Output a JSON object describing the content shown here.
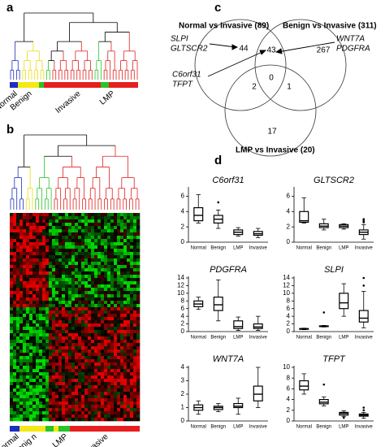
{
  "panels": {
    "a": {
      "label": "a",
      "groups": [
        "Normal",
        "Benign",
        "Invasive",
        "LMP"
      ]
    },
    "b": {
      "label": "b",
      "groups": [
        "Normal",
        "Benig n",
        "LMP",
        "Invasive"
      ]
    },
    "c": {
      "label": "c",
      "sets": [
        "Normal vs Invasive (89)",
        "Benign vs Invasive (311)",
        "LMP vs Invasive (20)"
      ],
      "regions": {
        "normal_only": "44",
        "normal_benign": "43",
        "benign_only": "267",
        "all": "0",
        "normal_lmp": "2",
        "benign_lmp": "1",
        "lmp_only": "17"
      },
      "annotations": [
        [
          "SLPI",
          "GLTSCR2"
        ],
        [
          "C6orf31",
          "TFPT"
        ],
        [
          "WNT7A",
          "PDGFRA"
        ]
      ]
    },
    "d": {
      "label": "d"
    }
  },
  "chart_data": [
    {
      "type": "box",
      "title": "C6orf31",
      "categories": [
        "Normal",
        "Benign",
        "LMP",
        "Invasive"
      ],
      "ylim": [
        0,
        7
      ],
      "yticks": [
        0,
        2,
        4,
        6
      ],
      "boxes": [
        {
          "min": 2.5,
          "q1": 2.8,
          "median": 3.5,
          "q3": 4.5,
          "max": 6.2,
          "outliers": []
        },
        {
          "min": 1.8,
          "q1": 2.5,
          "median": 3,
          "q3": 3.5,
          "max": 4.2,
          "outliers": [
            5.2
          ]
        },
        {
          "min": 0.8,
          "q1": 1.0,
          "median": 1.3,
          "q3": 1.6,
          "max": 1.9,
          "outliers": []
        },
        {
          "min": 0.6,
          "q1": 0.9,
          "median": 1.1,
          "q3": 1.4,
          "max": 1.8,
          "outliers": []
        }
      ]
    },
    {
      "type": "box",
      "title": "GLTSCR2",
      "categories": [
        "Normal",
        "Benign",
        "LMP",
        "Invasive"
      ],
      "ylim": [
        0,
        7
      ],
      "yticks": [
        0,
        2,
        4,
        6
      ],
      "boxes": [
        {
          "min": 2.5,
          "q1": 2.6,
          "median": 2.8,
          "q3": 4.0,
          "max": 5.8,
          "outliers": []
        },
        {
          "min": 1.6,
          "q1": 1.9,
          "median": 2.1,
          "q3": 2.4,
          "max": 3.0,
          "outliers": []
        },
        {
          "min": 1.7,
          "q1": 1.9,
          "median": 2.1,
          "q3": 2.3,
          "max": 2.4,
          "outliers": []
        },
        {
          "min": 0.4,
          "q1": 1.0,
          "median": 1.3,
          "q3": 1.6,
          "max": 2.3,
          "outliers": [
            2.6,
            2.8,
            3.0
          ]
        }
      ]
    },
    {
      "type": "box",
      "title": "PDGFRA",
      "categories": [
        "Normal",
        "Benign",
        "LMP",
        "Invasive"
      ],
      "ylim": [
        0,
        14
      ],
      "yticks": [
        0,
        2,
        4,
        6,
        8,
        10,
        12,
        14
      ],
      "boxes": [
        {
          "min": 5.8,
          "q1": 6.5,
          "median": 7.2,
          "q3": 8,
          "max": 9,
          "outliers": []
        },
        {
          "min": 2.8,
          "q1": 5.5,
          "median": 7,
          "q3": 9,
          "max": 13.5,
          "outliers": []
        },
        {
          "min": 0.3,
          "q1": 0.8,
          "median": 1.3,
          "q3": 2.8,
          "max": 3.8,
          "outliers": []
        },
        {
          "min": 0.3,
          "q1": 0.8,
          "median": 1.2,
          "q3": 2,
          "max": 4,
          "outliers": []
        }
      ]
    },
    {
      "type": "box",
      "title": "SLPI",
      "categories": [
        "Normal",
        "Benign",
        "LMP",
        "Invasive"
      ],
      "ylim": [
        0,
        14
      ],
      "yticks": [
        0,
        2,
        4,
        6,
        8,
        10,
        12,
        14
      ],
      "boxes": [
        {
          "min": 0.5,
          "q1": 0.6,
          "median": 0.7,
          "q3": 0.8,
          "max": 0.9,
          "outliers": []
        },
        {
          "min": 1.2,
          "q1": 1.3,
          "median": 1.4,
          "q3": 1.5,
          "max": 1.6,
          "outliers": [
            5
          ]
        },
        {
          "min": 4,
          "q1": 6,
          "median": 7.5,
          "q3": 10,
          "max": 12.5,
          "outliers": []
        },
        {
          "min": 1,
          "q1": 2.5,
          "median": 3.5,
          "q3": 5.5,
          "max": 10.5,
          "outliers": [
            12,
            14
          ]
        }
      ]
    },
    {
      "type": "box",
      "title": "WNT7A",
      "categories": [
        "Normal",
        "Benign",
        "LMP",
        "Invasive"
      ],
      "ylim": [
        0,
        4
      ],
      "yticks": [
        0,
        1,
        2,
        3,
        4
      ],
      "boxes": [
        {
          "min": 0.5,
          "q1": 0.8,
          "median": 1.0,
          "q3": 1.2,
          "max": 1.5,
          "outliers": []
        },
        {
          "min": 0.7,
          "q1": 0.85,
          "median": 1.0,
          "q3": 1.1,
          "max": 1.3,
          "outliers": []
        },
        {
          "min": 0.5,
          "q1": 1.0,
          "median": 1.1,
          "q3": 1.3,
          "max": 1.7,
          "outliers": []
        },
        {
          "min": 1.0,
          "q1": 1.5,
          "median": 2.0,
          "q3": 2.6,
          "max": 4.0,
          "outliers": []
        }
      ]
    },
    {
      "type": "box",
      "title": "TFPT",
      "categories": [
        "Normal",
        "Benign",
        "LMP",
        "Invasive"
      ],
      "ylim": [
        0,
        10
      ],
      "yticks": [
        0,
        2,
        4,
        6,
        8,
        10
      ],
      "boxes": [
        {
          "min": 5,
          "q1": 5.8,
          "median": 6.5,
          "q3": 7.5,
          "max": 8.8,
          "outliers": []
        },
        {
          "min": 2.8,
          "q1": 3.2,
          "median": 3.5,
          "q3": 4,
          "max": 4.5,
          "outliers": [
            6.8
          ]
        },
        {
          "min": 0.8,
          "q1": 1.1,
          "median": 1.4,
          "q3": 1.6,
          "max": 1.9,
          "outliers": [
            0.6
          ]
        },
        {
          "min": 0.5,
          "q1": 0.9,
          "median": 1.1,
          "q3": 1.3,
          "max": 1.6,
          "outliers": [
            2,
            2.5
          ]
        }
      ]
    }
  ]
}
